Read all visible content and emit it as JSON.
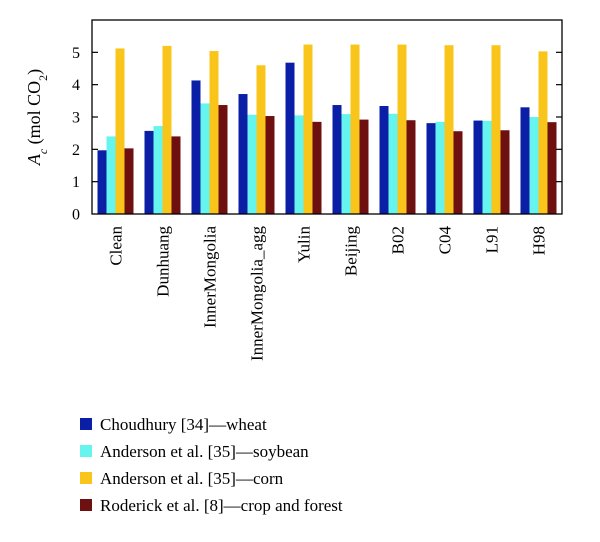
{
  "chart_data": {
    "type": "bar",
    "ylabel": "Ac (mol CO2)",
    "ylabel_parts": {
      "symbol": "A",
      "subscript": "c",
      "unit_open": " (mol CO",
      "unit_sub": "2",
      "unit_close": ")"
    },
    "ylim": [
      0,
      6
    ],
    "yticks": [
      0,
      1,
      2,
      3,
      4,
      5
    ],
    "ytick_labels": [
      "0",
      "1",
      "2",
      "3",
      "4",
      "5"
    ],
    "grid": false,
    "legend_position": "bottom",
    "categories": [
      "Clean",
      "Dunhuang",
      "InnerMongolia",
      "InnerMongolia_agg",
      "Yulin",
      "Beijing",
      "B02",
      "C04",
      "L91",
      "H98"
    ],
    "series": [
      {
        "name": "Choudhury [34]—wheat",
        "color": "#0a1fa6",
        "values": [
          1.97,
          2.57,
          4.13,
          3.71,
          4.68,
          3.37,
          3.34,
          2.81,
          2.89,
          3.3
        ]
      },
      {
        "name": "Anderson et al. [35]—soybean",
        "color": "#66f5ee",
        "values": [
          2.4,
          2.72,
          3.42,
          3.07,
          3.05,
          3.09,
          3.1,
          2.85,
          2.88,
          3.0
        ]
      },
      {
        "name": "Anderson et al. [35]—corn",
        "color": "#fac51a",
        "values": [
          5.12,
          5.2,
          5.04,
          4.6,
          5.24,
          5.24,
          5.24,
          5.22,
          5.22,
          5.03
        ]
      },
      {
        "name": "Roderick et al. [8]—crop and forest",
        "color": "#6e1010",
        "values": [
          2.03,
          2.4,
          3.37,
          3.03,
          2.85,
          2.92,
          2.9,
          2.56,
          2.59,
          2.84
        ]
      }
    ]
  }
}
